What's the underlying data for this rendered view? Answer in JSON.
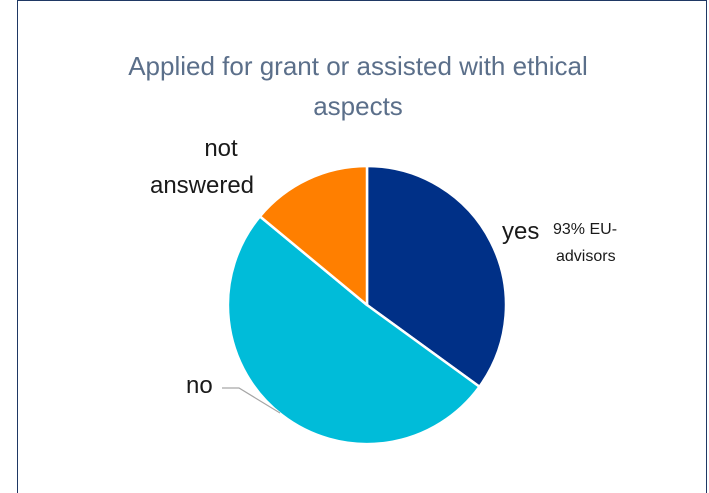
{
  "chart_data": {
    "type": "pie",
    "title": "Applied for grant or assisted with ethical aspects",
    "start_angle_deg": 0,
    "direction": "clockwise",
    "slices": [
      {
        "label": "yes",
        "value": 35,
        "color": "#003087"
      },
      {
        "label": "no",
        "value": 51,
        "color": "#00bcd9"
      },
      {
        "label": "not answered",
        "value": 14,
        "color": "#ff7f00"
      }
    ],
    "annotations": [
      {
        "text": "93% EU-advisors",
        "attached_to": "yes"
      }
    ],
    "label_lines": {
      "not_answered_1": "not",
      "not_answered_2": "answered",
      "annotation_1": "93% EU-",
      "annotation_2": "advisors"
    },
    "legend": "none"
  }
}
